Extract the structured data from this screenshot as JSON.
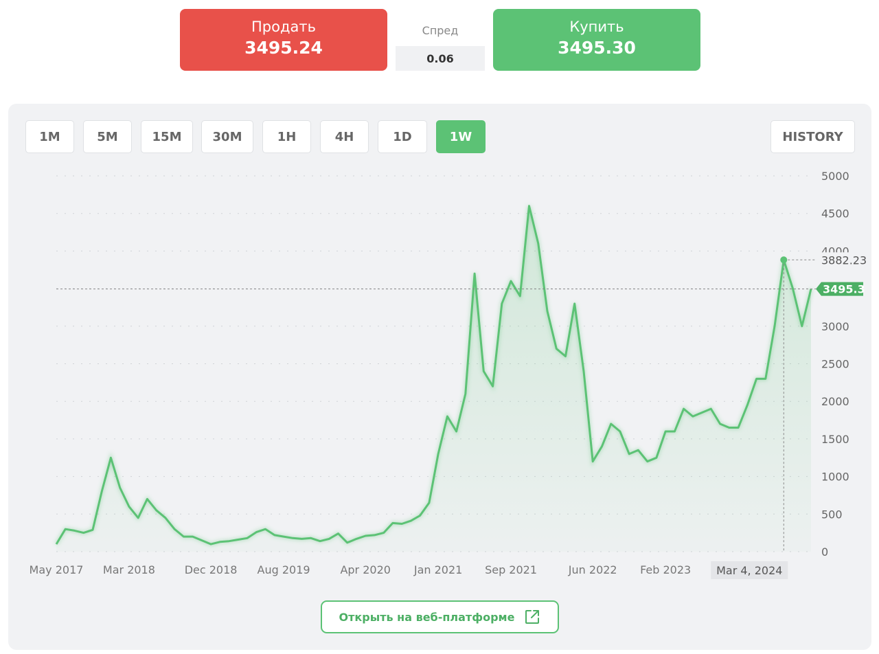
{
  "header": {
    "sell": {
      "label": "Продать",
      "price": "3495.24"
    },
    "spread": {
      "label": "Спред",
      "value": "0.06"
    },
    "buy": {
      "label": "Купить",
      "price": "3495.30"
    }
  },
  "toolbar": {
    "timeframes": [
      {
        "label": "1M",
        "active": false
      },
      {
        "label": "5M",
        "active": false
      },
      {
        "label": "15M",
        "active": false
      },
      {
        "label": "30M",
        "active": false
      },
      {
        "label": "1H",
        "active": false
      },
      {
        "label": "4H",
        "active": false
      },
      {
        "label": "1D",
        "active": false
      },
      {
        "label": "1W",
        "active": true
      }
    ],
    "history": "HISTORY"
  },
  "footer": {
    "web_button": "Открыть на веб-платформе"
  },
  "chart_data": {
    "type": "line",
    "categories": [
      "May 2017",
      null,
      null,
      null,
      null,
      null,
      null,
      null,
      "Mar 2018",
      null,
      null,
      null,
      null,
      null,
      null,
      null,
      null,
      "Dec 2018",
      null,
      null,
      null,
      null,
      null,
      null,
      null,
      "Aug 2019",
      null,
      null,
      null,
      null,
      null,
      null,
      null,
      null,
      "Apr 2020",
      null,
      null,
      null,
      null,
      null,
      null,
      null,
      "Jan 2021",
      null,
      null,
      null,
      null,
      null,
      null,
      null,
      "Sep 2021",
      null,
      null,
      null,
      null,
      null,
      null,
      null,
      null,
      "Jun 2022",
      null,
      null,
      null,
      null,
      null,
      null,
      null,
      "Feb 2023",
      null,
      null,
      null,
      null,
      null,
      null,
      null,
      null,
      null,
      null,
      null,
      null,
      "Mar 4, 2024",
      null,
      null,
      null
    ],
    "series": [
      {
        "name": "Price",
        "color": "#5cc275",
        "values": [
          100,
          300,
          280,
          250,
          290,
          800,
          1250,
          850,
          600,
          450,
          700,
          550,
          450,
          300,
          200,
          200,
          150,
          100,
          130,
          140,
          160,
          180,
          260,
          300,
          220,
          200,
          180,
          170,
          180,
          140,
          170,
          240,
          120,
          170,
          210,
          220,
          250,
          380,
          370,
          410,
          480,
          650,
          1300,
          1800,
          1600,
          2100,
          3700,
          2400,
          2200,
          3300,
          3600,
          3400,
          4600,
          4100,
          3200,
          2700,
          2600,
          3300,
          2400,
          1200,
          1400,
          1700,
          1600,
          1300,
          1350,
          1200,
          1250,
          1600,
          1600,
          1900,
          1800,
          1850,
          1900,
          1700,
          1650,
          1650,
          1950,
          2300,
          2300,
          3000,
          3882.23,
          3500,
          3000,
          3495.3
        ]
      }
    ],
    "ylim": [
      0,
      5000
    ],
    "yticks": [
      0,
      500,
      1000,
      1500,
      2000,
      2500,
      3000,
      3500,
      4000,
      4500,
      5000
    ],
    "grid": true,
    "hover_index": 80
  }
}
